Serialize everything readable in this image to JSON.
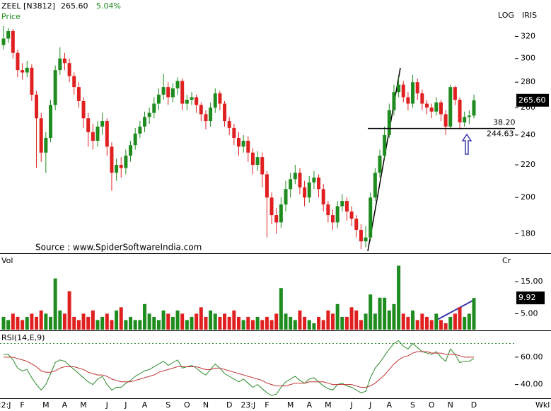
{
  "chart_data": [
    {
      "type": "candlestick",
      "title": "ZEEL [N3812]",
      "last_label": "265.60",
      "change": "5.04%",
      "y_label": "Price",
      "toolbar": [
        "LOG",
        "IRIS"
      ],
      "x_label": "Wkl",
      "source": "Source : www.SpiderSoftwareIndia.com",
      "log_scale": true,
      "up_color": "#1e8c1e",
      "down_color": "#e02020",
      "ylim": [
        170,
        345
      ],
      "yticks": [
        180,
        200,
        220,
        240,
        260,
        280,
        300,
        320
      ],
      "fib": {
        "label": "38.20",
        "value": 244.63
      },
      "categories": [
        "22:J",
        null,
        null,
        null,
        "F",
        null,
        null,
        null,
        null,
        "M",
        null,
        null,
        null,
        "A",
        null,
        null,
        null,
        "M",
        null,
        null,
        null,
        null,
        "J",
        null,
        null,
        null,
        "J",
        null,
        null,
        null,
        "A",
        null,
        null,
        null,
        null,
        "S",
        null,
        null,
        null,
        "O",
        null,
        null,
        null,
        "N",
        null,
        null,
        null,
        null,
        "D",
        null,
        null,
        null,
        "23:J",
        null,
        null,
        null,
        "F",
        null,
        null,
        null,
        null,
        "M",
        null,
        null,
        null,
        "A",
        null,
        null,
        null,
        "M",
        null,
        null,
        null,
        null,
        "J",
        null,
        null,
        null,
        "J",
        null,
        null,
        null,
        "A",
        null,
        null,
        null,
        null,
        "S",
        null,
        null,
        null,
        "O",
        null,
        null,
        null,
        "N",
        null,
        null,
        null,
        null,
        "D"
      ],
      "open": [
        312,
        318,
        325,
        305,
        290,
        288,
        292,
        270,
        252,
        228,
        238,
        262,
        290,
        300,
        296,
        285,
        276,
        265,
        252,
        242,
        236,
        246,
        250,
        232,
        215,
        220,
        218,
        226,
        233,
        241,
        246,
        253,
        256,
        263,
        270,
        276,
        268,
        275,
        281,
        263,
        266,
        268,
        262,
        255,
        250,
        260,
        271,
        263,
        250,
        245,
        238,
        232,
        236,
        228,
        220,
        225,
        214,
        200,
        190,
        186,
        196,
        205,
        211,
        215,
        206,
        200,
        209,
        212,
        205,
        196,
        190,
        186,
        195,
        198,
        192,
        188,
        182,
        176,
        178,
        200,
        215,
        226,
        240,
        258,
        272,
        278,
        268,
        263,
        280,
        271,
        263,
        260,
        257,
        264,
        255,
        246,
        276,
        266,
        249,
        253,
        254
      ],
      "high": [
        330,
        328,
        327,
        308,
        296,
        298,
        295,
        273,
        256,
        242,
        266,
        294,
        310,
        305,
        300,
        288,
        280,
        268,
        256,
        248,
        250,
        256,
        252,
        235,
        224,
        225,
        230,
        236,
        245,
        250,
        257,
        260,
        268,
        275,
        287,
        280,
        279,
        284,
        283,
        270,
        272,
        270,
        264,
        258,
        264,
        275,
        273,
        265,
        253,
        248,
        242,
        240,
        239,
        231,
        229,
        228,
        216,
        203,
        194,
        200,
        210,
        215,
        220,
        218,
        210,
        213,
        216,
        214,
        208,
        198,
        193,
        198,
        202,
        200,
        195,
        190,
        185,
        184,
        203,
        218,
        230,
        246,
        263,
        278,
        284,
        281,
        272,
        286,
        283,
        274,
        266,
        263,
        268,
        266,
        258,
        278,
        277,
        268,
        257,
        258,
        270
      ],
      "low": [
        308,
        314,
        300,
        284,
        282,
        284,
        265,
        218,
        222,
        215,
        235,
        258,
        286,
        290,
        280,
        270,
        260,
        245,
        232,
        230,
        232,
        240,
        226,
        204,
        210,
        212,
        214,
        222,
        230,
        238,
        242,
        248,
        252,
        258,
        266,
        262,
        264,
        270,
        258,
        258,
        262,
        256,
        250,
        244,
        246,
        256,
        258,
        246,
        240,
        233,
        226,
        228,
        222,
        214,
        216,
        206,
        178,
        185,
        180,
        183,
        192,
        200,
        208,
        202,
        195,
        197,
        205,
        200,
        192,
        186,
        182,
        183,
        192,
        187,
        184,
        178,
        172,
        173,
        176,
        198,
        212,
        224,
        238,
        254,
        268,
        264,
        258,
        260,
        266,
        258,
        255,
        252,
        254,
        250,
        240,
        244,
        262,
        244,
        246,
        248,
        252
      ],
      "close": [
        318,
        325,
        305,
        290,
        288,
        292,
        270,
        252,
        228,
        238,
        262,
        290,
        300,
        296,
        285,
        276,
        265,
        252,
        242,
        236,
        246,
        250,
        232,
        215,
        220,
        218,
        226,
        233,
        241,
        246,
        253,
        256,
        263,
        270,
        276,
        268,
        275,
        281,
        263,
        266,
        268,
        262,
        255,
        250,
        260,
        271,
        263,
        250,
        245,
        238,
        232,
        236,
        228,
        220,
        225,
        214,
        200,
        190,
        186,
        196,
        205,
        211,
        215,
        206,
        200,
        209,
        212,
        205,
        196,
        190,
        186,
        195,
        198,
        192,
        188,
        182,
        176,
        178,
        200,
        215,
        226,
        240,
        258,
        272,
        278,
        268,
        263,
        280,
        271,
        263,
        260,
        257,
        264,
        255,
        246,
        276,
        266,
        249,
        253,
        254,
        265.6
      ]
    },
    {
      "type": "bar",
      "y_label": "Vol",
      "unit": "Cr",
      "ylim": [
        0,
        23
      ],
      "yticks": [
        {
          "value": 5,
          "label": "5.00"
        },
        {
          "value": 15,
          "label": "15.00"
        }
      ],
      "values": [
        4,
        3,
        5,
        4,
        3,
        4,
        5,
        4,
        6,
        5,
        4,
        16,
        6,
        5,
        12,
        4,
        3,
        5,
        4,
        6,
        3,
        4,
        5,
        3,
        6,
        7,
        3,
        4,
        3,
        3,
        8,
        5,
        4,
        3,
        6,
        5,
        4,
        6,
        5,
        3,
        4,
        5,
        7,
        4,
        6,
        5,
        4,
        5,
        4,
        6,
        4,
        3,
        4,
        3,
        4,
        3,
        4,
        3,
        5,
        13,
        5,
        4,
        3,
        6,
        4,
        3,
        2,
        4,
        3,
        6,
        5,
        8,
        4,
        4,
        7,
        6,
        3,
        5,
        11,
        5,
        10,
        10,
        6,
        8,
        20,
        5,
        4,
        6,
        3,
        5,
        4,
        3,
        5,
        3,
        2,
        4,
        5,
        7,
        4,
        5,
        9.92
      ]
    },
    {
      "type": "line",
      "title": "RSI(14,E,9)",
      "ylim": [
        30,
        78
      ],
      "ref_line": 70,
      "yticks": [
        {
          "value": 40,
          "label": "40.00"
        },
        {
          "value": 60,
          "label": "60.00"
        }
      ],
      "series": [
        {
          "color": "#2a8a2a",
          "values": [
            62,
            62,
            58,
            52,
            50,
            51,
            45,
            40,
            36,
            40,
            48,
            56,
            58,
            57,
            54,
            51,
            48,
            45,
            42,
            40,
            44,
            46,
            40,
            36,
            38,
            38,
            41,
            43,
            46,
            48,
            50,
            51,
            53,
            55,
            57,
            54,
            56,
            58,
            52,
            53,
            54,
            52,
            49,
            47,
            51,
            55,
            52,
            48,
            46,
            44,
            42,
            44,
            41,
            38,
            40,
            37,
            34,
            32,
            33,
            38,
            42,
            44,
            46,
            43,
            41,
            44,
            45,
            42,
            39,
            37,
            36,
            40,
            41,
            39,
            38,
            36,
            34,
            35,
            45,
            52,
            56,
            61,
            66,
            70,
            72,
            68,
            66,
            70,
            67,
            64,
            63,
            62,
            64,
            60,
            57,
            66,
            62,
            56,
            57,
            57,
            59
          ]
        },
        {
          "color": "#c03030",
          "values": [
            60,
            60,
            60,
            59,
            58,
            57,
            55,
            53,
            50,
            49,
            49,
            50,
            52,
            53,
            53,
            53,
            52,
            51,
            49,
            48,
            47,
            47,
            46,
            44,
            43,
            42,
            42,
            42,
            43,
            44,
            45,
            46,
            47,
            49,
            50,
            51,
            52,
            53,
            53,
            53,
            53,
            53,
            52,
            51,
            51,
            52,
            52,
            51,
            50,
            49,
            48,
            47,
            46,
            45,
            44,
            43,
            41,
            40,
            39,
            39,
            39,
            40,
            41,
            41,
            41,
            42,
            42,
            42,
            42,
            41,
            40,
            40,
            40,
            40,
            40,
            39,
            38,
            38,
            39,
            41,
            44,
            47,
            51,
            55,
            58,
            60,
            61,
            63,
            64,
            64,
            64,
            63,
            63,
            63,
            62,
            62,
            62,
            61,
            60,
            60,
            60
          ]
        }
      ]
    }
  ]
}
